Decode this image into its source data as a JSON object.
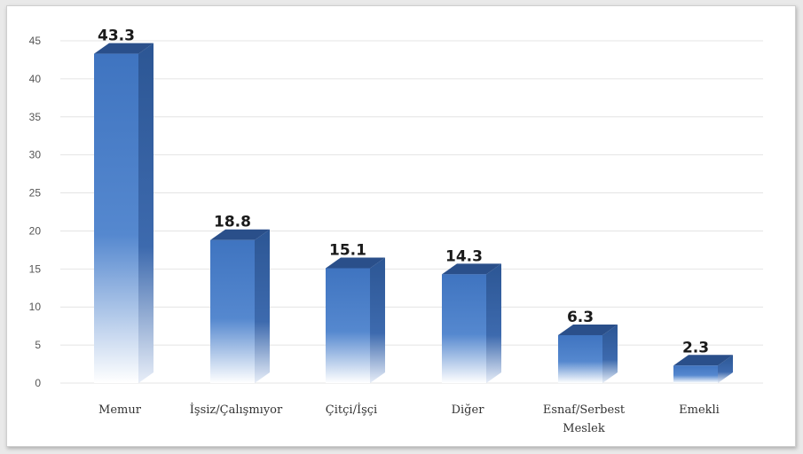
{
  "chart_data": {
    "type": "bar",
    "categories": [
      "Memur",
      "İşsiz/Çalışmıyor",
      "Çitçi/İşçi",
      "Diğer",
      "Esnaf/Serbest Meslek",
      "Emekli"
    ],
    "category_lines": [
      [
        "Memur"
      ],
      [
        "İşsiz/Çalışmıyor"
      ],
      [
        "Çitçi/İşçi"
      ],
      [
        "Diğer"
      ],
      [
        "Esnaf/Serbest",
        "Meslek"
      ],
      [
        "Emekli"
      ]
    ],
    "values": [
      43.3,
      18.8,
      15.1,
      14.3,
      6.3,
      2.3
    ],
    "data_labels": [
      "43.3",
      "18.8",
      "15.1",
      "14.3",
      "6.3",
      "2.3"
    ],
    "title": "",
    "xlabel": "",
    "ylabel": "",
    "ylim": [
      0,
      45
    ],
    "yticks": [
      0,
      5,
      10,
      15,
      20,
      25,
      30,
      35,
      40,
      45
    ],
    "grid": true,
    "bar_style": "3d-gradient",
    "colors": {
      "bar_front": "#3f74c0",
      "bar_side": "#2c5694",
      "bar_top": "#2a4f8a",
      "bar_fade": "#ffffff"
    }
  }
}
